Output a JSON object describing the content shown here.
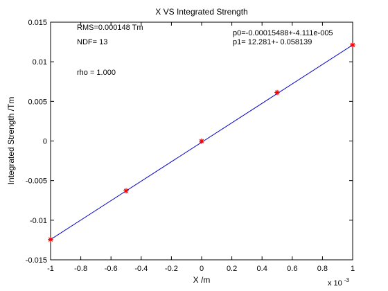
{
  "chart_data": {
    "type": "scatter",
    "title": "X VS Integrated Strength",
    "xlabel": "X /m",
    "ylabel": "Integrated Strength /Tm",
    "x_multiplier_label": "x 10",
    "x_multiplier_exponent": "-3",
    "xlim": [
      -1,
      1
    ],
    "ylim": [
      -0.015,
      0.015
    ],
    "x_ticks": [
      "-1",
      "-0.8",
      "-0.6",
      "-0.4",
      "-0.2",
      "0",
      "0.2",
      "0.4",
      "0.6",
      "0.8",
      "1"
    ],
    "y_ticks": [
      "0.015",
      "0.01",
      "0.005",
      "0",
      "-0.005",
      "-0.01",
      "-0.015"
    ],
    "x_tick_values": [
      -1,
      -0.8,
      -0.6,
      -0.4,
      -0.2,
      0,
      0.2,
      0.4,
      0.6,
      0.8,
      1
    ],
    "y_tick_values": [
      0.015,
      0.01,
      0.005,
      0,
      -0.005,
      -0.01,
      -0.015
    ],
    "grid": false,
    "series": [
      {
        "marker": "*",
        "color": "#ff0000",
        "x": [
          -1,
          -0.5,
          0,
          0.5,
          1
        ],
        "y": [
          -0.01244,
          -0.00629,
          -2e-05,
          0.00612,
          0.01212
        ]
      }
    ],
    "fit_line": {
      "color": "#0000cc",
      "x": [
        -1,
        1
      ],
      "y": [
        -0.01244,
        0.01212
      ]
    },
    "annotations": {
      "rms": "RMS=0.000148 Tm",
      "ndf": "NDF=   13",
      "rho": "rho    =  1.000",
      "p0": "p0=-0.00015488+-4.111e-005",
      "p1": "p1=   12.281+- 0.058139"
    }
  }
}
